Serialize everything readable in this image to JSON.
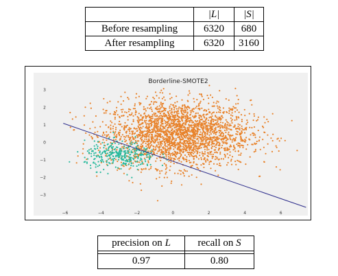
{
  "sampling_table": {
    "header_L": "|L|",
    "header_S": "|S|",
    "rows": [
      {
        "label": "Before resampling",
        "L": "6320",
        "S": "680"
      },
      {
        "label": "After resampling",
        "L": "6320",
        "S": "3160"
      }
    ]
  },
  "chart_data": {
    "type": "scatter",
    "title": "Borderline-SMOTE2",
    "xlabel": "",
    "ylabel": "",
    "xlim": [
      -6.3,
      7.5
    ],
    "ylim": [
      -3.7,
      3.4
    ],
    "xticks": [
      -6,
      -4,
      -2,
      0,
      2,
      4,
      6
    ],
    "yticks": [
      3,
      2,
      1,
      0,
      -1,
      -2,
      -3
    ],
    "grid": false,
    "background": "#f0f0f0",
    "series": [
      {
        "class": "L",
        "color": "#e8822a",
        "count": 6320,
        "center": [
          0.3,
          0.5
        ],
        "spread": [
          2.0,
          0.95
        ]
      },
      {
        "class": "S",
        "color": "#27b99c",
        "count": 3160,
        "center": [
          -2.9,
          -0.75
        ],
        "spread": [
          1.0,
          0.4
        ]
      }
    ],
    "decision_line": {
      "color": "#2a2a8a",
      "points": [
        [
          -6.1,
          1.1
        ],
        [
          7.4,
          -3.7
        ]
      ]
    }
  },
  "metrics_table": {
    "precision_label_prefix": "precision on ",
    "precision_label_var": "L",
    "recall_label_prefix": "recall on ",
    "recall_label_var": "S",
    "precision_value": "0.97",
    "recall_value": "0.80"
  }
}
